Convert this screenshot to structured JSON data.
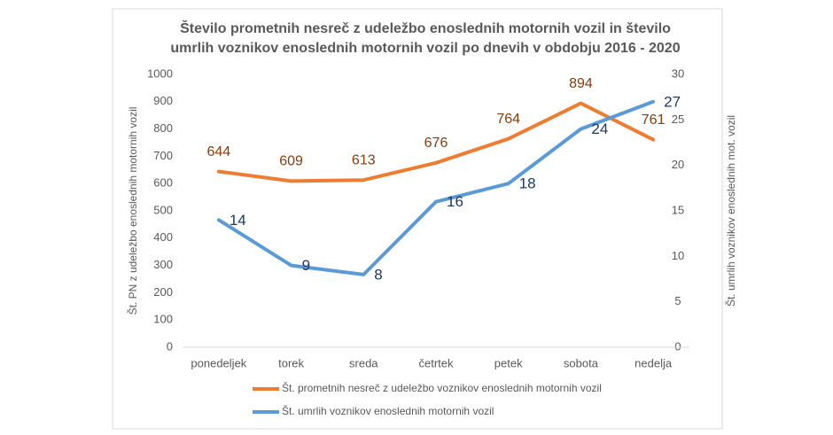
{
  "chart_data": {
    "type": "line",
    "title": [
      "Število prometnih nesreč z udeležbo enoslednih motornih vozil in število",
      "umrlih voznikov enoslednih motornih vozil po dnevih v obdobju 2016 - 2020"
    ],
    "ylabel": "Št. PN z udeležbo enoslednih motornih vozil",
    "y2label": "Št. umrlih voznikov enoslednih mot. vozil",
    "categories": [
      "ponedeljek",
      "torek",
      "sreda",
      "četrtek",
      "petek",
      "sobota",
      "nedelja"
    ],
    "series": [
      {
        "name": "Št. prometnih nesreč z udeležbo voznikov enoslednih motornih vozil",
        "color": "#ed7d31",
        "label_color": "#843c0c",
        "values": [
          644,
          609,
          613,
          676,
          764,
          894,
          761
        ]
      },
      {
        "name": "Št. umrlih voznikov enoslednih motornih vozil",
        "color": "#5b9bd5",
        "label_color": "#1f3864",
        "axis": "y2",
        "values": [
          14,
          9,
          8,
          16,
          18,
          24,
          27
        ]
      }
    ],
    "ylim": [
      0,
      1000
    ],
    "yticks": [
      0,
      100,
      200,
      300,
      400,
      500,
      600,
      700,
      800,
      900,
      1000
    ],
    "y2lim": [
      0,
      30
    ],
    "y2ticks": [
      0,
      5,
      10,
      15,
      20,
      25,
      30
    ],
    "grid": false
  }
}
